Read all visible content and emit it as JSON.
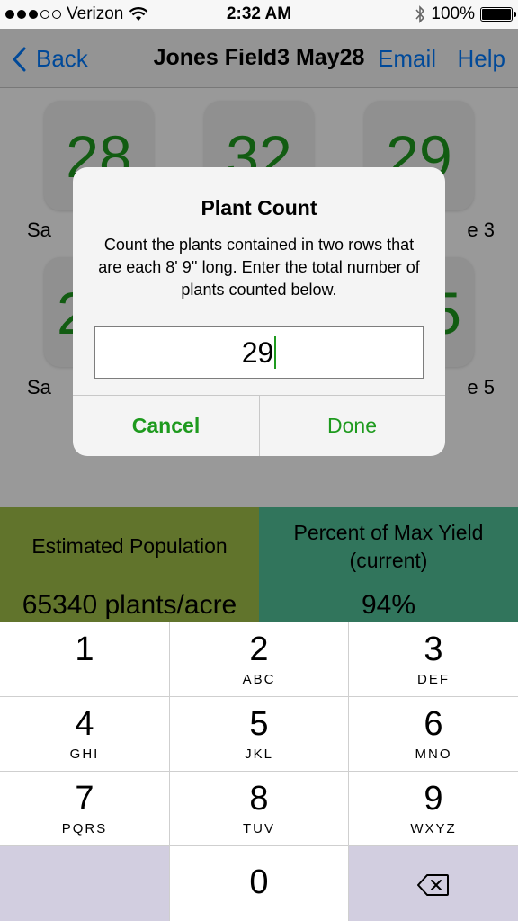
{
  "status_bar": {
    "carrier": "Verizon",
    "time": "2:32 AM",
    "battery": "100%"
  },
  "nav": {
    "back_label": "Back",
    "title": "Jones Field3 May28",
    "email_label": "Email",
    "help_label": "Help"
  },
  "samples": [
    {
      "count": "28",
      "label": "Sa"
    },
    {
      "count": "32",
      "label": ""
    },
    {
      "count": "29",
      "label": "e 3"
    },
    {
      "count": "2",
      "label": "Sa"
    },
    {
      "count": "",
      "label": ""
    },
    {
      "count": "5",
      "label": "e 5"
    }
  ],
  "dialog": {
    "title": "Plant Count",
    "message": "Count the plants contained in two rows that are each 8' 9'' long. Enter the total number of plants counted below.",
    "input_value": "29",
    "cancel_label": "Cancel",
    "done_label": "Done"
  },
  "stats": {
    "population_label": "Estimated Population",
    "population_value": "65340 plants/acre",
    "yield_label_line1": "Percent of Max Yield",
    "yield_label_line2": "(current)",
    "yield_value": "94%"
  },
  "keypad": {
    "keys": [
      {
        "digit": "1",
        "letters": ""
      },
      {
        "digit": "2",
        "letters": "ABC"
      },
      {
        "digit": "3",
        "letters": "DEF"
      },
      {
        "digit": "4",
        "letters": "GHI"
      },
      {
        "digit": "5",
        "letters": "JKL"
      },
      {
        "digit": "6",
        "letters": "MNO"
      },
      {
        "digit": "7",
        "letters": "PQRS"
      },
      {
        "digit": "8",
        "letters": "TUV"
      },
      {
        "digit": "9",
        "letters": "WXYZ"
      },
      {
        "digit": "0",
        "letters": ""
      }
    ]
  },
  "colors": {
    "accent_green": "#1e9a1e",
    "ios_blue": "#007aff",
    "population_bg": "#a2c24a",
    "yield_bg": "#52c49a"
  }
}
